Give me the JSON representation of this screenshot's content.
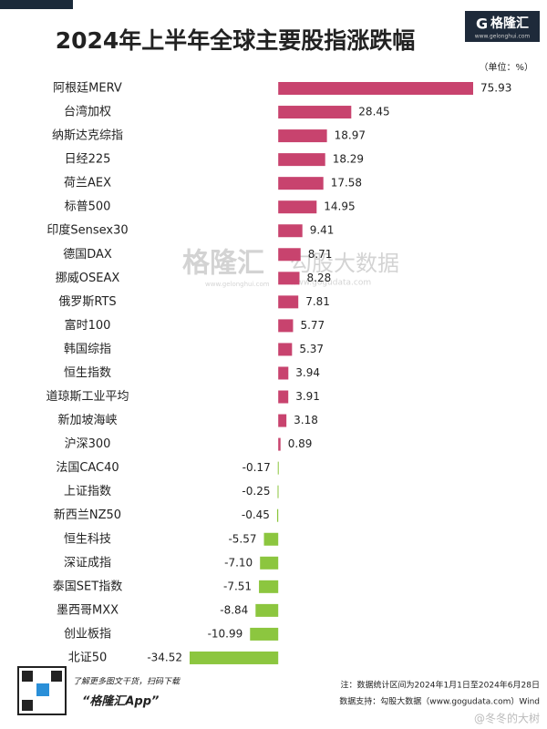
{
  "chart_data": {
    "type": "bar",
    "orientation": "horizontal",
    "title": "2024年上半年全球主要股指涨跌幅",
    "unit_label": "（单位：%）",
    "categories": [
      "阿根廷MERV",
      "台湾加权",
      "纳斯达克综指",
      "日经225",
      "荷兰AEX",
      "标普500",
      "印度Sensex30",
      "德国DAX",
      "挪威OSEAX",
      "俄罗斯RTS",
      "富时100",
      "韩国综指",
      "恒生指数",
      "道琼斯工业平均",
      "新加坡海峡",
      "沪深300",
      "法国CAC40",
      "上证指数",
      "新西兰NZ50",
      "恒生科技",
      "深证成指",
      "泰国SET指数",
      "墨西哥MXX",
      "创业板指",
      "北证50"
    ],
    "values": [
      75.93,
      28.45,
      18.97,
      18.29,
      17.58,
      14.95,
      9.41,
      8.71,
      8.28,
      7.81,
      5.77,
      5.37,
      3.94,
      3.91,
      3.18,
      0.89,
      -0.17,
      -0.25,
      -0.45,
      -5.57,
      -7.1,
      -7.51,
      -8.84,
      -10.99,
      -34.52
    ],
    "value_labels": [
      "75.93",
      "28.45",
      "18.97",
      "18.29",
      "17.58",
      "14.95",
      "9.41",
      "8.71",
      "8.28",
      "7.81",
      "5.77",
      "5.37",
      "3.94",
      "3.91",
      "3.18",
      "0.89",
      "-0.17",
      "-0.25",
      "-0.45",
      "-5.57",
      "-7.10",
      "-7.51",
      "-8.84",
      "-10.99",
      "-34.52"
    ],
    "color": "#c8436e",
    "negative_color": "#8cc63f",
    "logo": {
      "name": "格隆汇",
      "url": "www.gelonghui.com"
    },
    "watermark": {
      "brand": "格隆汇",
      "brand_url": "www.gelonghui.com",
      "source": "勾股大数据",
      "source_url": "www.gogudata.com"
    },
    "note": "注：数据统计区间为2024年1月1日至2024年6月28日",
    "data_source": "数据支持：勾股大数据（www.gogudata.com）Wind",
    "qr_caption": "了解更多图文干货，扫码下载",
    "app_name": "“格隆汇App”",
    "social_watermark": "@冬冬的大树"
  }
}
